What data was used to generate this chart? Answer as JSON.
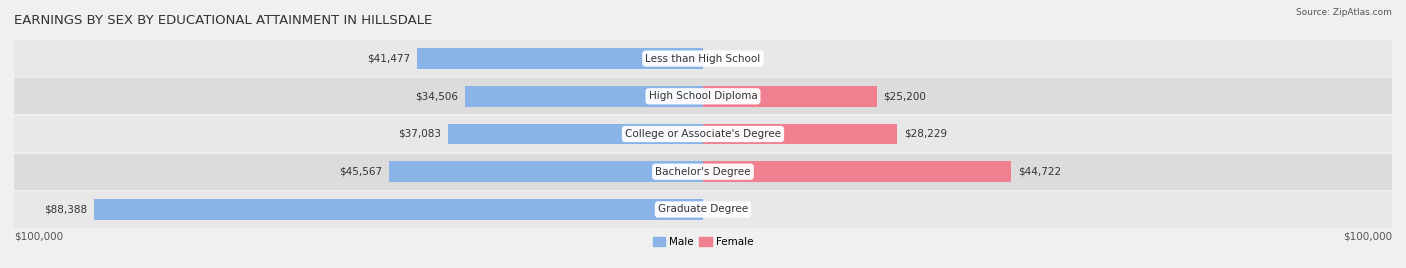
{
  "title": "EARNINGS BY SEX BY EDUCATIONAL ATTAINMENT IN HILLSDALE",
  "source": "Source: ZipAtlas.com",
  "categories": [
    "Less than High School",
    "High School Diploma",
    "College or Associate's Degree",
    "Bachelor's Degree",
    "Graduate Degree"
  ],
  "male_values": [
    41477,
    34506,
    37083,
    45567,
    88388
  ],
  "female_values": [
    0,
    25200,
    28229,
    44722,
    0
  ],
  "male_color": "#8ab4e8",
  "female_color": "#f08090",
  "male_label": "Male",
  "female_label": "Female",
  "axis_max": 100000,
  "x_tick_label_left": "$100,000",
  "x_tick_label_right": "$100,000",
  "background_color": "#f0f0f0",
  "title_fontsize": 9.5,
  "label_fontsize": 7.5,
  "bar_height": 0.55
}
